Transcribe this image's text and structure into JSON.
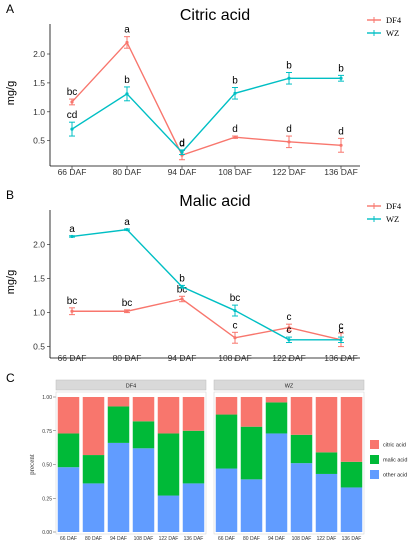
{
  "chart_data": [
    {
      "panel": "A",
      "type": "line",
      "title": "Citric acid",
      "ylabel": "mg/g",
      "ylim": [
        0.2,
        2.45
      ],
      "yticks": [
        "0.5",
        "1.0",
        "1.5",
        "2.0"
      ],
      "categories": [
        "66 DAF",
        "80 DAF",
        "94 DAF",
        "108 DAF",
        "122 DAF",
        "136 DAF"
      ],
      "legend_position": "top-right",
      "series": [
        {
          "name": "DF4",
          "color": "#F8766D",
          "values": [
            1.17,
            2.2,
            0.25,
            0.56,
            0.48,
            0.42
          ],
          "errors": [
            0.05,
            0.1,
            0.08,
            0.02,
            0.1,
            0.12
          ],
          "letters": [
            "bc",
            "a",
            "d",
            "d",
            "d",
            "d"
          ]
        },
        {
          "name": "WZ",
          "color": "#00BFC4",
          "values": [
            0.7,
            1.31,
            0.3,
            1.32,
            1.58,
            1.58
          ],
          "errors": [
            0.12,
            0.12,
            0.04,
            0.1,
            0.1,
            0.05
          ],
          "letters": [
            "cd",
            "b",
            "d",
            "b",
            "b",
            "b"
          ]
        }
      ]
    },
    {
      "panel": "B",
      "type": "line",
      "title": "Malic acid",
      "ylabel": "mg/g",
      "ylim": [
        0.45,
        2.45
      ],
      "yticks": [
        "0.5",
        "1.0",
        "1.5",
        "2.0"
      ],
      "categories": [
        "66 DAF",
        "80 DAF",
        "94 DAF",
        "108 DAF",
        "122 DAF",
        "136 DAF"
      ],
      "legend_position": "top-right",
      "series": [
        {
          "name": "DF4",
          "color": "#F8766D",
          "values": [
            1.02,
            1.02,
            1.2,
            0.63,
            0.78,
            0.6
          ],
          "errors": [
            0.05,
            0.02,
            0.04,
            0.08,
            0.05,
            0.1
          ],
          "letters": [
            "bc",
            "bc",
            "bc",
            "c",
            "c",
            "c"
          ]
        },
        {
          "name": "WZ",
          "color": "#00BFC4",
          "values": [
            2.12,
            2.22,
            1.38,
            1.03,
            0.6,
            0.6
          ],
          "errors": [
            0.01,
            0.01,
            0.02,
            0.08,
            0.04,
            0.04
          ],
          "letters": [
            "a",
            "a",
            "b",
            "bc",
            "c",
            "c"
          ]
        }
      ]
    },
    {
      "panel": "C",
      "type": "bar",
      "stacked": true,
      "ylabel": "precent",
      "ylim": [
        0,
        1
      ],
      "yticks": [
        "0.00",
        "0.25",
        "0.50",
        "0.75",
        "1.00"
      ],
      "categories": [
        "66 DAF",
        "80 DAF",
        "94 DAF",
        "108 DAF",
        "122 DAF",
        "136 DAF"
      ],
      "legend_position": "right",
      "legend": [
        {
          "name": "citric acid",
          "color": "#F8766D"
        },
        {
          "name": "malic acid",
          "color": "#00BA38"
        },
        {
          "name": "other acid",
          "color": "#619CFF"
        }
      ],
      "facets": [
        {
          "label": "DF4",
          "other": [
            0.48,
            0.36,
            0.66,
            0.62,
            0.27,
            0.36
          ],
          "malic": [
            0.25,
            0.21,
            0.27,
            0.2,
            0.46,
            0.39
          ],
          "citric": [
            0.27,
            0.43,
            0.07,
            0.18,
            0.27,
            0.25
          ]
        },
        {
          "label": "WZ",
          "other": [
            0.47,
            0.39,
            0.73,
            0.51,
            0.43,
            0.33
          ],
          "malic": [
            0.4,
            0.39,
            0.23,
            0.21,
            0.16,
            0.19
          ],
          "citric": [
            0.13,
            0.22,
            0.04,
            0.28,
            0.41,
            0.48
          ]
        }
      ]
    }
  ]
}
